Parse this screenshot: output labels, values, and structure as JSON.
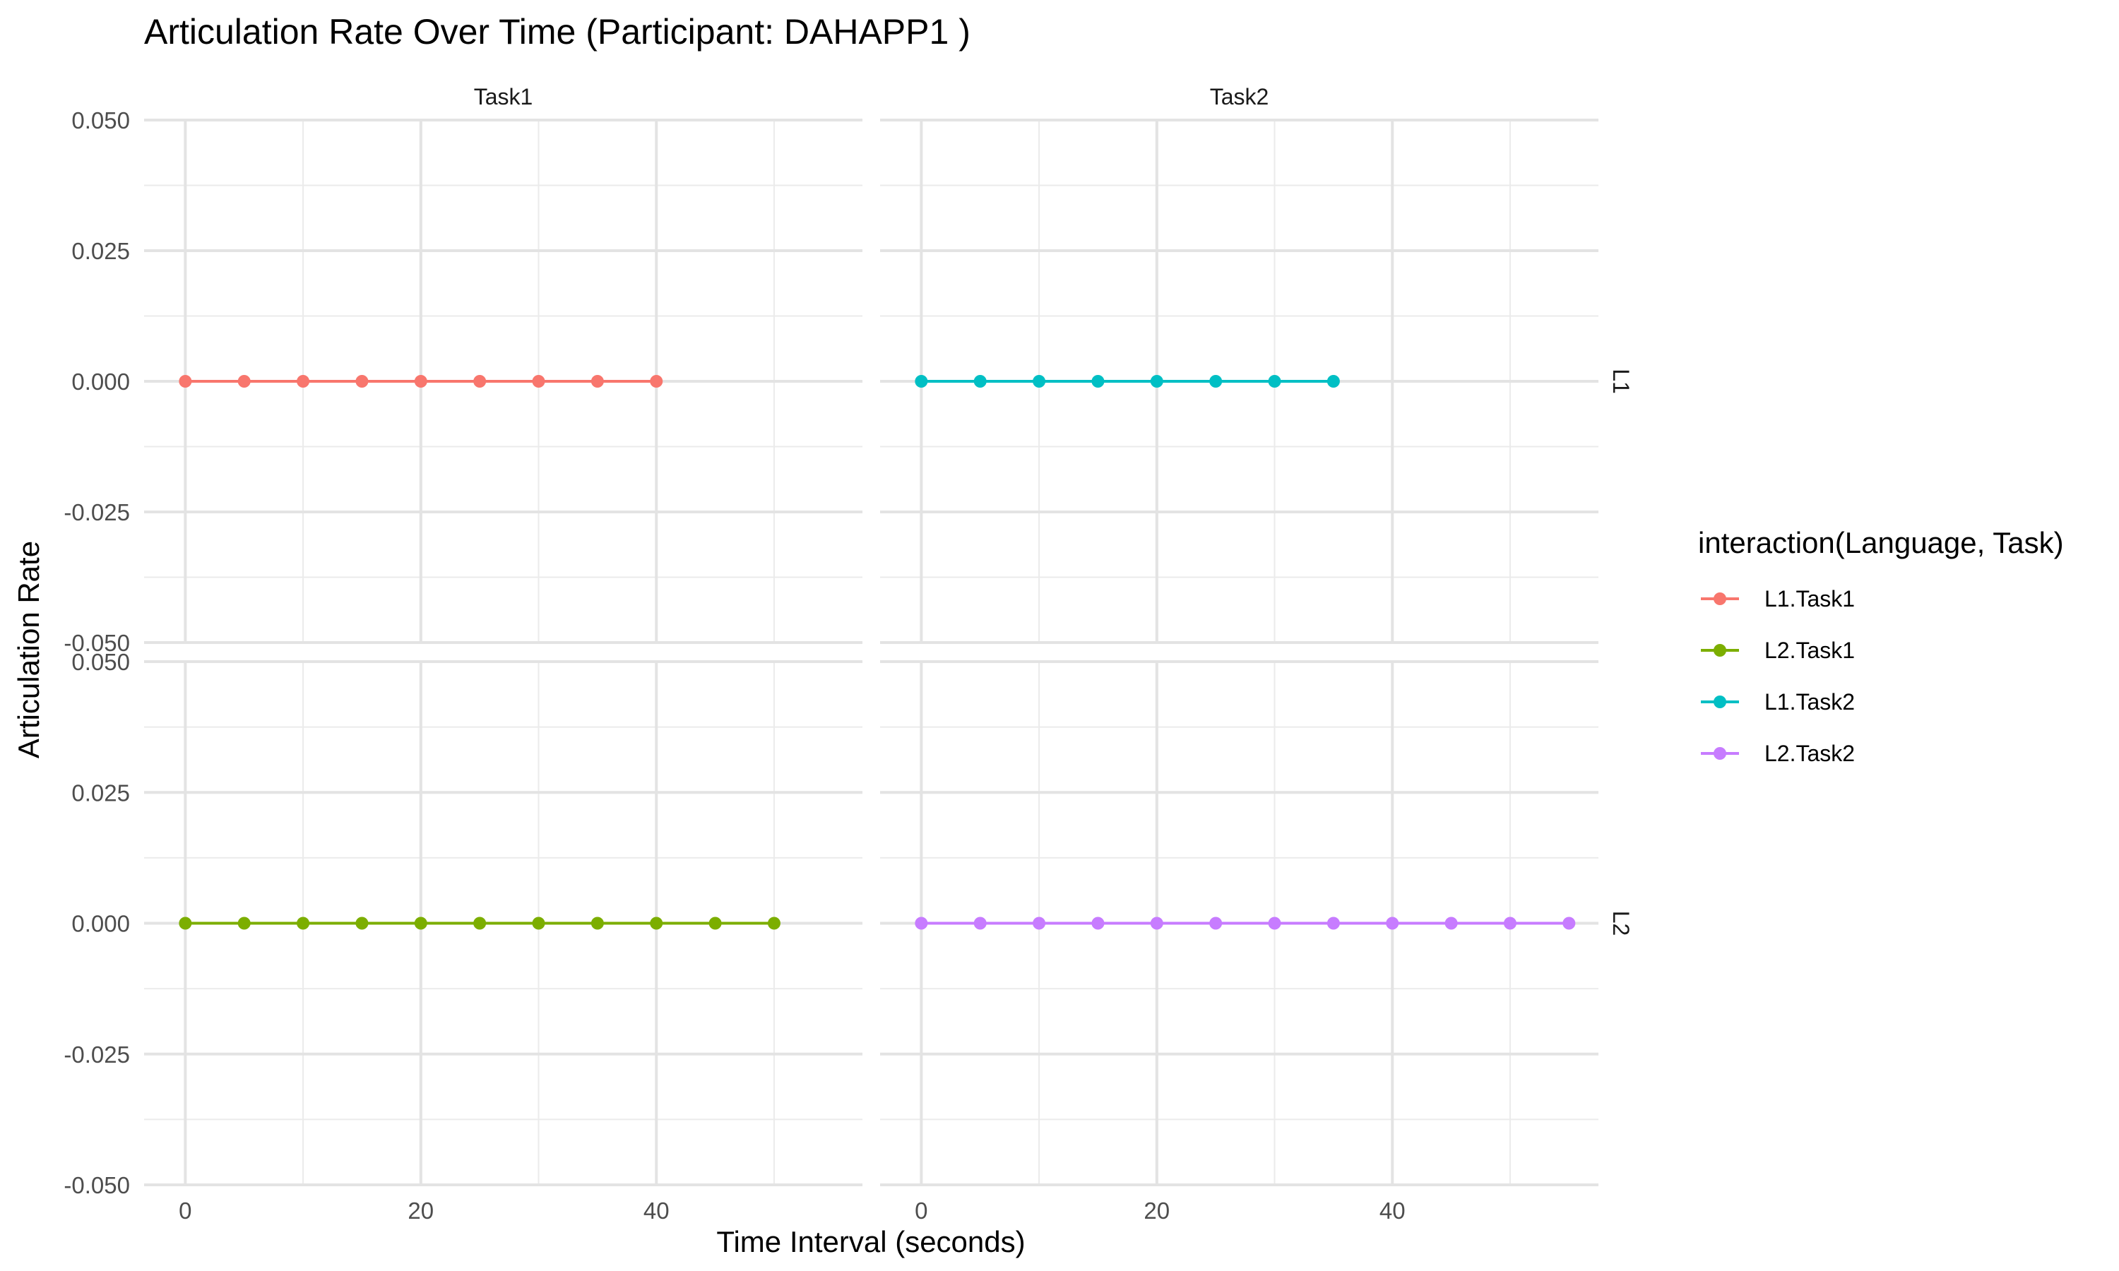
{
  "chart_data": {
    "type": "line",
    "title": "Articulation Rate Over Time (Participant: DAHAPP1 )",
    "xlabel": "Time Interval (seconds)",
    "ylabel": "Articulation Rate",
    "facet_columns": [
      "Task1",
      "Task2"
    ],
    "facet_rows": [
      "L1",
      "L2"
    ],
    "xlim": [
      -3.5,
      57.5
    ],
    "ylim": [
      -0.05,
      0.05
    ],
    "x_ticks": [
      0,
      20,
      40
    ],
    "x_tick_labels": [
      "0",
      "20",
      "40"
    ],
    "y_ticks": [
      0.05,
      0.025,
      0,
      -0.025,
      -0.05
    ],
    "y_tick_labels": [
      "0.050",
      "0.025",
      "0.000",
      "-0.025",
      "-0.050"
    ],
    "grid": true,
    "legend": {
      "title": "interaction(Language, Task)",
      "position": "right",
      "entries": [
        "L1.Task1",
        "L2.Task1",
        "L1.Task2",
        "L2.Task2"
      ]
    },
    "series": [
      {
        "name": "L1.Task1",
        "facet_row": "L1",
        "facet_column": "Task1",
        "color": "#F8766D",
        "x": [
          0,
          5,
          10,
          15,
          20,
          25,
          30,
          35,
          40
        ],
        "y": [
          0,
          0,
          0,
          0,
          0,
          0,
          0,
          0,
          0
        ]
      },
      {
        "name": "L2.Task1",
        "facet_row": "L2",
        "facet_column": "Task1",
        "color": "#7CAE00",
        "x": [
          0,
          5,
          10,
          15,
          20,
          25,
          30,
          35,
          40,
          45,
          50
        ],
        "y": [
          0,
          0,
          0,
          0,
          0,
          0,
          0,
          0,
          0,
          0,
          0
        ]
      },
      {
        "name": "L1.Task2",
        "facet_row": "L1",
        "facet_column": "Task2",
        "color": "#00BFC4",
        "x": [
          0,
          5,
          10,
          15,
          20,
          25,
          30,
          35
        ],
        "y": [
          0,
          0,
          0,
          0,
          0,
          0,
          0,
          0
        ]
      },
      {
        "name": "L2.Task2",
        "facet_row": "L2",
        "facet_column": "Task2",
        "color": "#C77CFF",
        "x": [
          0,
          5,
          10,
          15,
          20,
          25,
          30,
          35,
          40,
          45,
          50,
          55
        ],
        "y": [
          0,
          0,
          0,
          0,
          0,
          0,
          0,
          0,
          0,
          0,
          0,
          0
        ]
      }
    ]
  }
}
